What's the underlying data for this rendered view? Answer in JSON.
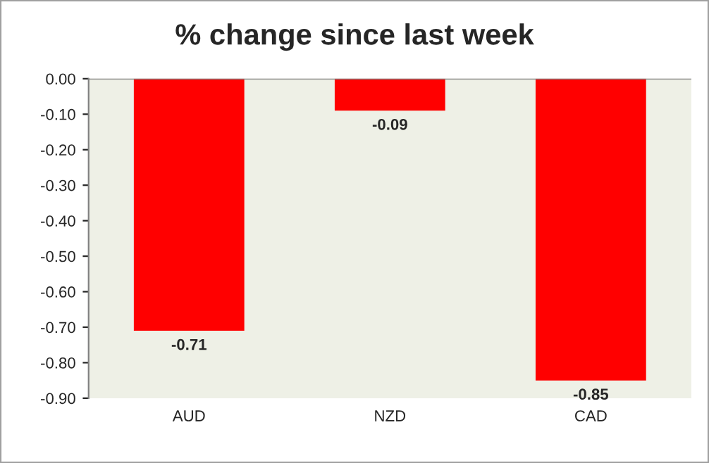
{
  "chart_data": {
    "type": "bar",
    "title": "% change since last week",
    "categories": [
      "AUD",
      "NZD",
      "CAD"
    ],
    "values": [
      -0.71,
      -0.09,
      -0.85
    ],
    "color": "#ff0000",
    "ylim": [
      -0.9,
      0
    ],
    "yticks": [
      {
        "value": 0,
        "label": "0.00"
      },
      {
        "value": -0.1,
        "label": "-0.10"
      },
      {
        "value": -0.2,
        "label": "-0.20"
      },
      {
        "value": -0.3,
        "label": "-0.30"
      },
      {
        "value": -0.4,
        "label": "-0.40"
      },
      {
        "value": -0.5,
        "label": "-0.50"
      },
      {
        "value": -0.6,
        "label": "-0.60"
      },
      {
        "value": -0.7,
        "label": "-0.70"
      },
      {
        "value": -0.8,
        "label": "-0.80"
      },
      {
        "value": -0.9,
        "label": "-0.90"
      }
    ],
    "data_labels": true,
    "grid": false,
    "legend": false
  }
}
